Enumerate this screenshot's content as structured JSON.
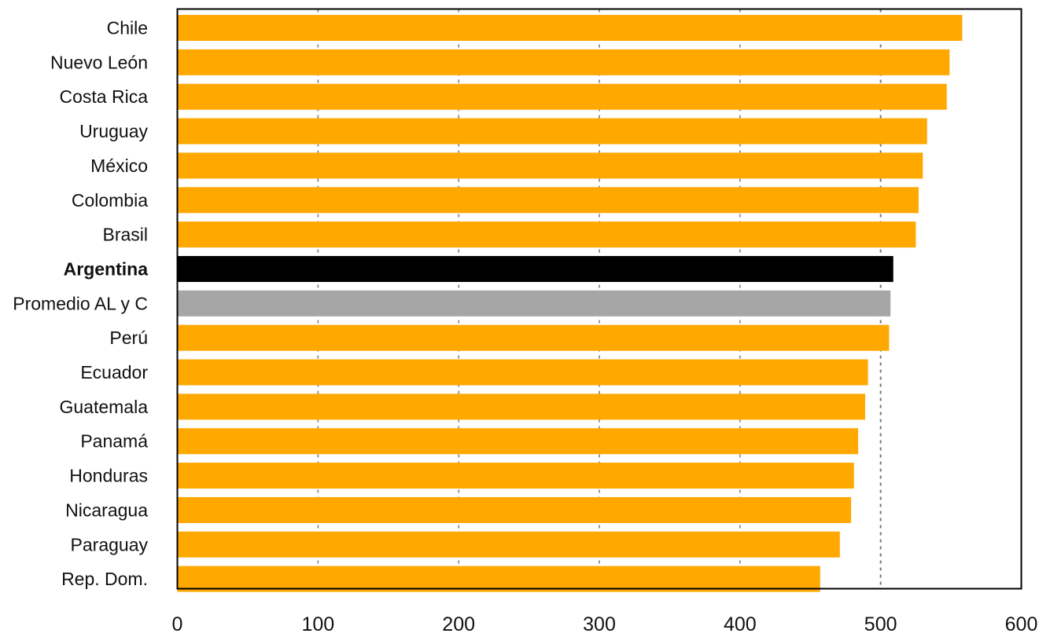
{
  "chart_data": {
    "type": "bar",
    "orientation": "horizontal",
    "title": "",
    "xlabel": "",
    "ylabel": "",
    "categories": [
      "Chile",
      "Nuevo León",
      "Costa Rica",
      "Uruguay",
      "México",
      "Colombia",
      "Brasil",
      "Argentina",
      "Promedio AL y C",
      "Perú",
      "Ecuador",
      "Guatemala",
      "Panamá",
      "Honduras",
      "Nicaragua",
      "Paraguay",
      "Rep. Dom."
    ],
    "values": [
      558,
      549,
      547,
      533,
      530,
      527,
      525,
      509,
      507,
      506,
      491,
      489,
      484,
      481,
      479,
      471,
      457
    ],
    "bar_colors": [
      "#FFA800",
      "#FFA800",
      "#FFA800",
      "#FFA800",
      "#FFA800",
      "#FFA800",
      "#FFA800",
      "#000000",
      "#A6A6A6",
      "#FFA800",
      "#FFA800",
      "#FFA800",
      "#FFA800",
      "#FFA800",
      "#FFA800",
      "#FFA800",
      "#FFA800"
    ],
    "highlight_category": "Argentina",
    "xlim": [
      0,
      600
    ],
    "xticks": [
      0,
      100,
      200,
      300,
      400,
      500,
      600
    ],
    "gridlines": "vertical dashed",
    "reference_line": 500,
    "legend": "none"
  },
  "colors": {
    "bar": "#FFA800",
    "highlight": "#000000",
    "average": "#A6A6A6",
    "grid": "#999999",
    "reference": "#777777",
    "axis": "#000000"
  }
}
